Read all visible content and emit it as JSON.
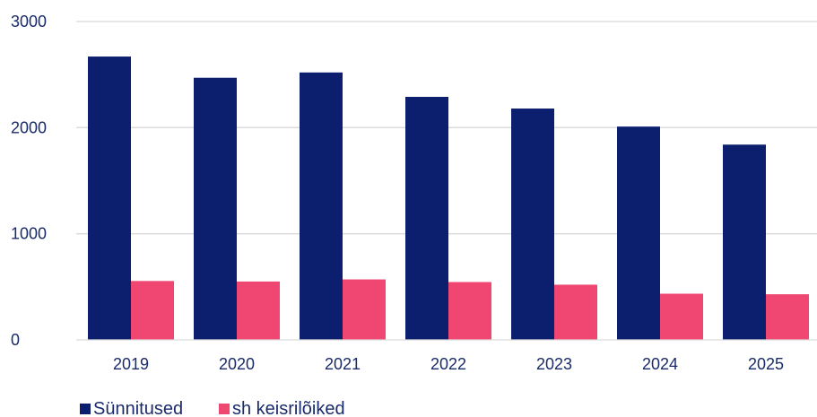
{
  "chart_data": {
    "type": "bar",
    "categories": [
      "2019",
      "2020",
      "2021",
      "2022",
      "2023",
      "2024",
      "2025"
    ],
    "series": [
      {
        "name": "Sünnitused",
        "color": "#0b1f6e",
        "values": [
          2670,
          2470,
          2520,
          2290,
          2180,
          2010,
          1840
        ]
      },
      {
        "name": "sh keisrilõiked",
        "color": "#f04672",
        "values": [
          555,
          550,
          570,
          545,
          520,
          435,
          430
        ]
      }
    ],
    "ylim": [
      0,
      3000
    ],
    "yticks": [
      "0",
      "1000",
      "2000",
      "3000"
    ],
    "grid": true,
    "legend_position": "bottom-left"
  }
}
